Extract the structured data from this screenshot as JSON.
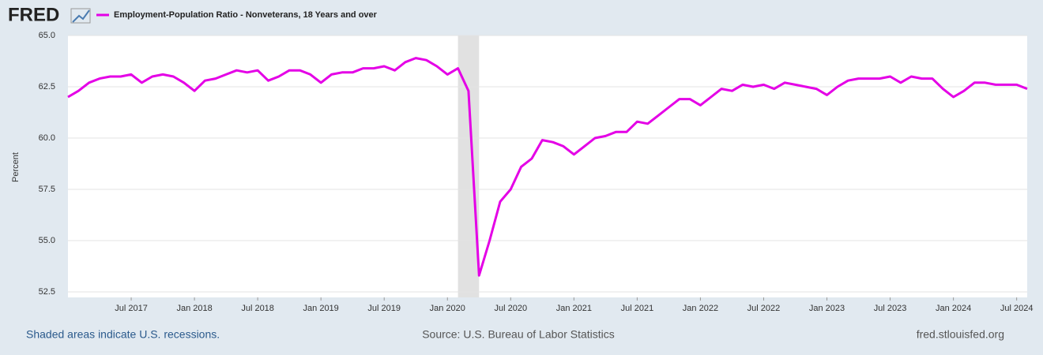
{
  "chart_data": {
    "type": "line",
    "logo": "FRED",
    "title": "Employment-Population Ratio - Nonveterans, 18 Years and over",
    "ylabel": "Percent",
    "x": [
      "2017-01",
      "2017-02",
      "2017-03",
      "2017-04",
      "2017-05",
      "2017-06",
      "2017-07",
      "2017-08",
      "2017-09",
      "2017-10",
      "2017-11",
      "2017-12",
      "2018-01",
      "2018-02",
      "2018-03",
      "2018-04",
      "2018-05",
      "2018-06",
      "2018-07",
      "2018-08",
      "2018-09",
      "2018-10",
      "2018-11",
      "2018-12",
      "2019-01",
      "2019-02",
      "2019-03",
      "2019-04",
      "2019-05",
      "2019-06",
      "2019-07",
      "2019-08",
      "2019-09",
      "2019-10",
      "2019-11",
      "2019-12",
      "2020-01",
      "2020-02",
      "2020-03",
      "2020-04",
      "2020-05",
      "2020-06",
      "2020-07",
      "2020-08",
      "2020-09",
      "2020-10",
      "2020-11",
      "2020-12",
      "2021-01",
      "2021-02",
      "2021-03",
      "2021-04",
      "2021-05",
      "2021-06",
      "2021-07",
      "2021-08",
      "2021-09",
      "2021-10",
      "2021-11",
      "2021-12",
      "2022-01",
      "2022-02",
      "2022-03",
      "2022-04",
      "2022-05",
      "2022-06",
      "2022-07",
      "2022-08",
      "2022-09",
      "2022-10",
      "2022-11",
      "2022-12",
      "2023-01",
      "2023-02",
      "2023-03",
      "2023-04",
      "2023-05",
      "2023-06",
      "2023-07",
      "2023-08",
      "2023-09",
      "2023-10",
      "2023-11",
      "2023-12",
      "2024-01",
      "2024-02",
      "2024-03",
      "2024-04",
      "2024-05",
      "2024-06",
      "2024-07",
      "2024-08"
    ],
    "series": [
      {
        "name": "Employment-Population Ratio - Nonveterans, 18 Years and over",
        "color": "#e400e6",
        "values": [
          62.0,
          62.3,
          62.7,
          62.9,
          63.0,
          63.0,
          63.1,
          62.7,
          63.0,
          63.1,
          63.0,
          62.7,
          62.3,
          62.8,
          62.9,
          63.1,
          63.3,
          63.2,
          63.3,
          62.8,
          63.0,
          63.3,
          63.3,
          63.1,
          62.7,
          63.1,
          63.2,
          63.2,
          63.4,
          63.4,
          63.5,
          63.3,
          63.7,
          63.9,
          63.8,
          63.5,
          63.1,
          63.4,
          62.3,
          53.3,
          55.0,
          56.9,
          57.5,
          58.6,
          59.0,
          59.9,
          59.8,
          59.6,
          59.2,
          59.6,
          60.0,
          60.1,
          60.3,
          60.3,
          60.8,
          60.7,
          61.1,
          61.5,
          61.9,
          61.9,
          61.6,
          62.0,
          62.4,
          62.3,
          62.6,
          62.5,
          62.6,
          62.4,
          62.7,
          62.6,
          62.5,
          62.4,
          62.1,
          62.5,
          62.8,
          62.9,
          62.9,
          62.9,
          63.0,
          62.7,
          63.0,
          62.9,
          62.9,
          62.4,
          62.0,
          62.3,
          62.7,
          62.7,
          62.6,
          62.6,
          62.6,
          62.4
        ]
      }
    ],
    "xlim": [
      "2017-01",
      "2024-08"
    ],
    "xticks": [
      {
        "value": "2017-07",
        "label": "Jul 2017"
      },
      {
        "value": "2018-01",
        "label": "Jan 2018"
      },
      {
        "value": "2018-07",
        "label": "Jul 2018"
      },
      {
        "value": "2019-01",
        "label": "Jan 2019"
      },
      {
        "value": "2019-07",
        "label": "Jul 2019"
      },
      {
        "value": "2020-01",
        "label": "Jan 2020"
      },
      {
        "value": "2020-07",
        "label": "Jul 2020"
      },
      {
        "value": "2021-01",
        "label": "Jan 2021"
      },
      {
        "value": "2021-07",
        "label": "Jul 2021"
      },
      {
        "value": "2022-01",
        "label": "Jan 2022"
      },
      {
        "value": "2022-07",
        "label": "Jul 2022"
      },
      {
        "value": "2023-01",
        "label": "Jan 2023"
      },
      {
        "value": "2023-07",
        "label": "Jul 2023"
      },
      {
        "value": "2024-01",
        "label": "Jan 2024"
      },
      {
        "value": "2024-07",
        "label": "Jul 2024"
      }
    ],
    "ylim": [
      52.5,
      65
    ],
    "yticks": [
      52.5,
      {
        "value": 55,
        "label": "55.0"
      },
      57.5,
      {
        "value": 60,
        "label": "60.0"
      },
      62.5,
      {
        "value": 65,
        "label": "65.0"
      }
    ],
    "grid": true,
    "recessions": [
      {
        "start": "2020-02",
        "end": "2020-04"
      }
    ],
    "recession_note": "Shaded areas indicate U.S. recessions.",
    "source": "Source: U.S. Bureau of Labor Statistics",
    "site": "fred.stlouisfed.org"
  }
}
